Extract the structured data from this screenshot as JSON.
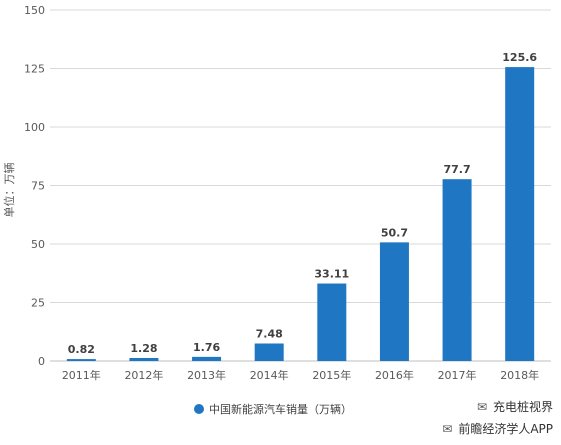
{
  "chart_data": {
    "type": "bar",
    "categories": [
      "2011年",
      "2012年",
      "2013年",
      "2014年",
      "2015年",
      "2016年",
      "2017年",
      "2018年"
    ],
    "series": [
      {
        "name": "中国新能源汽车销量（万辆）",
        "values": [
          0.82,
          1.28,
          1.76,
          7.48,
          33.11,
          50.7,
          77.7,
          125.6
        ]
      }
    ],
    "value_labels": [
      "0.82",
      "1.28",
      "1.76",
      "7.48",
      "33.11",
      "50.7",
      "77.7",
      "125.6"
    ],
    "ylabel": "单位：万辆",
    "ylim": [
      0,
      150
    ],
    "yticks": [
      0,
      25,
      50,
      75,
      100,
      125,
      150
    ],
    "grid": true,
    "legend_position": "bottom",
    "bar_color": "#1f77c4"
  },
  "watermarks": {
    "line1": "充电桩视界",
    "line2": "前瞻经济学人APP",
    "icon1": "wechat-icon",
    "icon2": "wechat-icon"
  }
}
